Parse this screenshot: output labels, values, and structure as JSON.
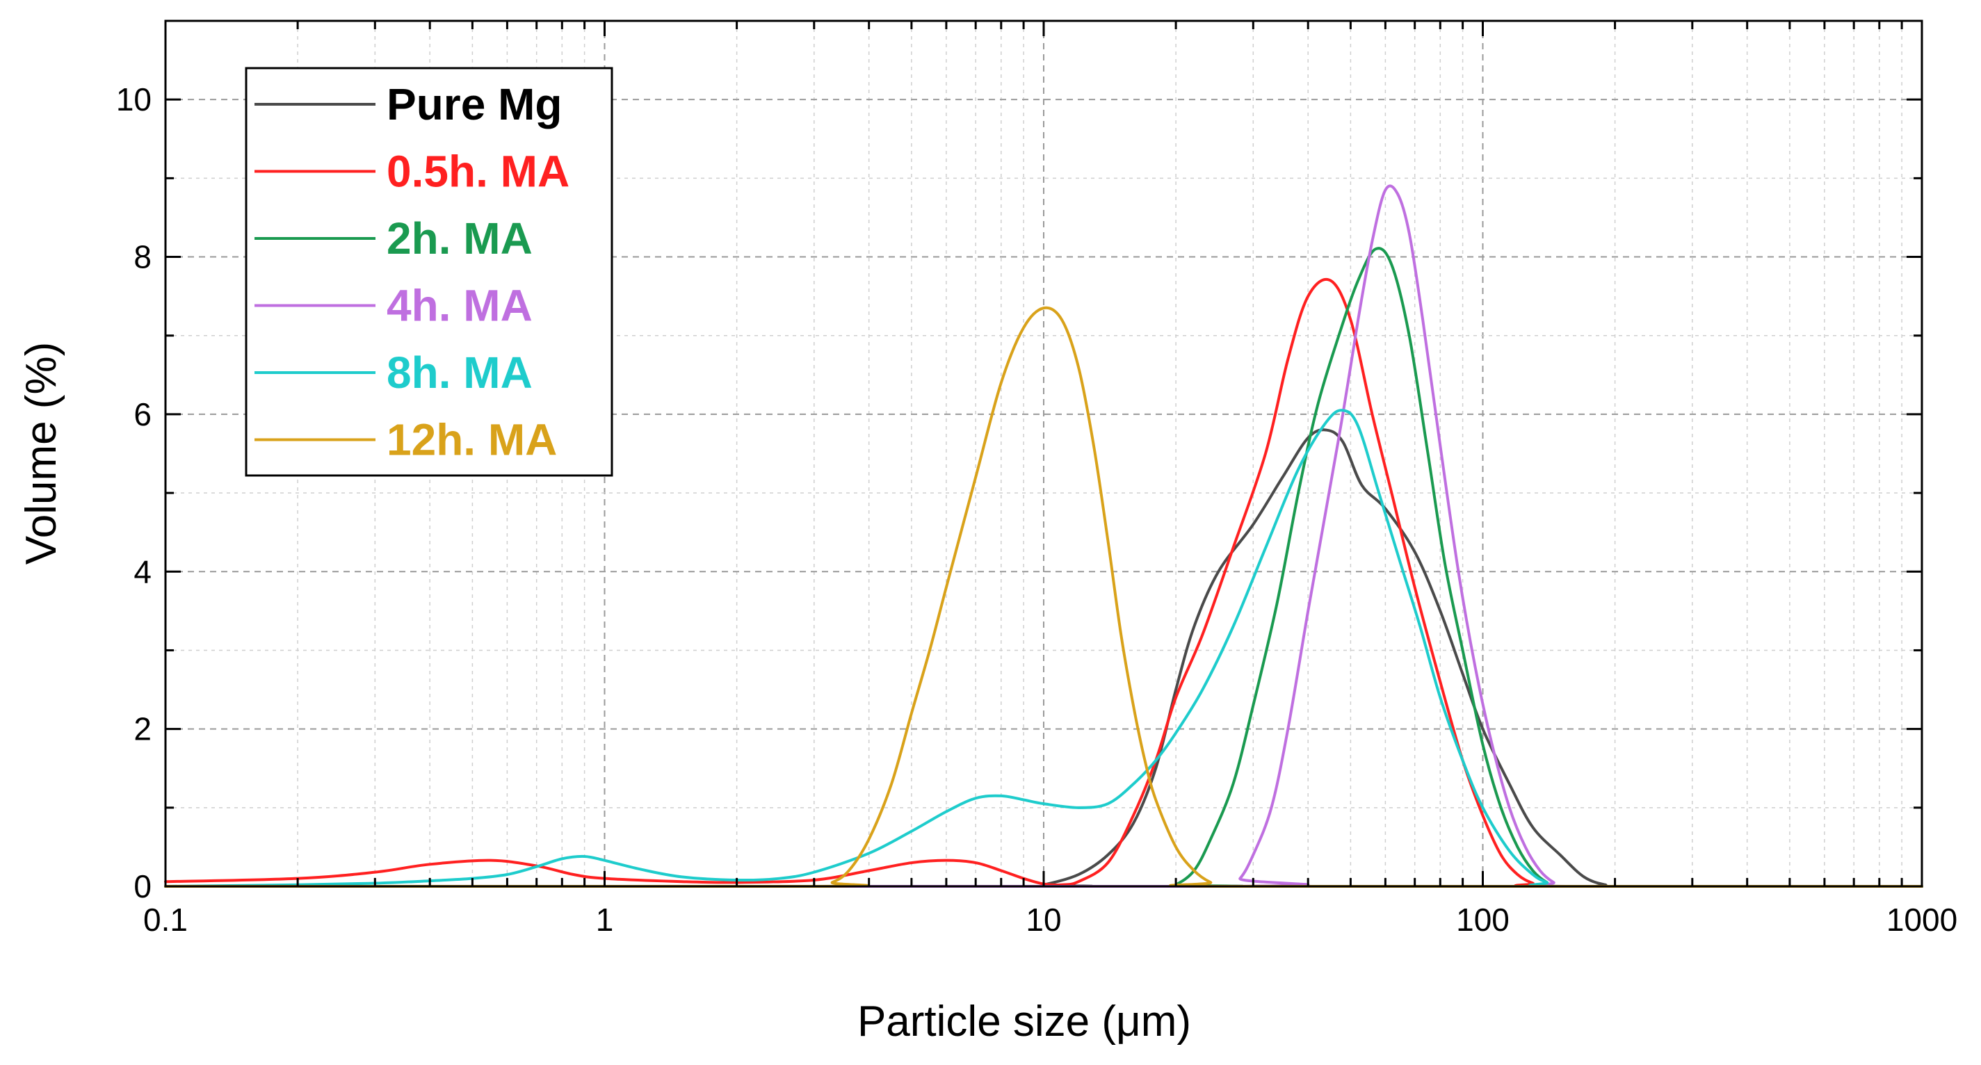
{
  "chart_data": {
    "type": "line",
    "title": "",
    "xlabel": "Particle size (μm)",
    "ylabel": "Volume (%)",
    "xscale": "log",
    "xlim": [
      0.1,
      1000
    ],
    "ylim": [
      0,
      11
    ],
    "x_ticks": [
      0.1,
      1,
      10,
      100,
      1000
    ],
    "x_tick_labels": [
      "0.1",
      "1",
      "10",
      "100",
      "1000"
    ],
    "y_ticks": [
      0,
      2,
      4,
      6,
      8,
      10
    ],
    "y_tick_labels": [
      "0",
      "2",
      "4",
      "6",
      "8",
      "10"
    ],
    "grid": true,
    "legend_position": "top-left",
    "series": [
      {
        "name": "Pure Mg",
        "color": "#4a4a4a",
        "points": [
          [
            0.1,
            0
          ],
          [
            9,
            0
          ],
          [
            10,
            0.02
          ],
          [
            12,
            0.15
          ],
          [
            14,
            0.4
          ],
          [
            16,
            0.8
          ],
          [
            18,
            1.5
          ],
          [
            20,
            2.5
          ],
          [
            22,
            3.3
          ],
          [
            25,
            4.0
          ],
          [
            30,
            4.6
          ],
          [
            35,
            5.2
          ],
          [
            40,
            5.7
          ],
          [
            44,
            5.8
          ],
          [
            48,
            5.65
          ],
          [
            53,
            5.1
          ],
          [
            60,
            4.8
          ],
          [
            70,
            4.25
          ],
          [
            80,
            3.5
          ],
          [
            90,
            2.7
          ],
          [
            100,
            2.0
          ],
          [
            115,
            1.3
          ],
          [
            130,
            0.75
          ],
          [
            150,
            0.4
          ],
          [
            170,
            0.12
          ],
          [
            190,
            0.02
          ],
          [
            210,
            0
          ],
          [
            1000,
            0
          ]
        ]
      },
      {
        "name": "0.5h. MA",
        "color": "#ff2020",
        "points": [
          [
            0.1,
            0.06
          ],
          [
            0.2,
            0.1
          ],
          [
            0.3,
            0.18
          ],
          [
            0.4,
            0.28
          ],
          [
            0.55,
            0.33
          ],
          [
            0.7,
            0.26
          ],
          [
            0.85,
            0.15
          ],
          [
            1,
            0.1
          ],
          [
            1.5,
            0.06
          ],
          [
            2,
            0.05
          ],
          [
            3,
            0.08
          ],
          [
            4,
            0.2
          ],
          [
            5,
            0.3
          ],
          [
            6,
            0.33
          ],
          [
            7,
            0.3
          ],
          [
            8,
            0.2
          ],
          [
            9,
            0.1
          ],
          [
            10,
            0.03
          ],
          [
            11,
            0.02
          ],
          [
            12,
            0.06
          ],
          [
            14,
            0.3
          ],
          [
            16,
            0.9
          ],
          [
            18,
            1.6
          ],
          [
            20,
            2.4
          ],
          [
            23,
            3.2
          ],
          [
            27,
            4.3
          ],
          [
            32,
            5.5
          ],
          [
            36,
            6.7
          ],
          [
            40,
            7.5
          ],
          [
            45,
            7.7
          ],
          [
            50,
            7.2
          ],
          [
            56,
            6.0
          ],
          [
            62,
            5.0
          ],
          [
            70,
            3.8
          ],
          [
            80,
            2.6
          ],
          [
            90,
            1.6
          ],
          [
            100,
            0.9
          ],
          [
            110,
            0.4
          ],
          [
            120,
            0.15
          ],
          [
            130,
            0.04
          ],
          [
            140,
            0
          ],
          [
            1000,
            0
          ]
        ]
      },
      {
        "name": "2h. MA",
        "color": "#1a9a50",
        "points": [
          [
            0.1,
            0
          ],
          [
            19,
            0
          ],
          [
            20,
            0.02
          ],
          [
            22,
            0.2
          ],
          [
            24,
            0.6
          ],
          [
            27,
            1.3
          ],
          [
            30,
            2.3
          ],
          [
            34,
            3.6
          ],
          [
            38,
            5.0
          ],
          [
            42,
            6.1
          ],
          [
            47,
            7.0
          ],
          [
            52,
            7.7
          ],
          [
            57,
            8.1
          ],
          [
            62,
            7.9
          ],
          [
            68,
            7.0
          ],
          [
            75,
            5.5
          ],
          [
            82,
            4.1
          ],
          [
            90,
            3.0
          ],
          [
            100,
            1.8
          ],
          [
            110,
            1.0
          ],
          [
            120,
            0.5
          ],
          [
            130,
            0.2
          ],
          [
            140,
            0.05
          ],
          [
            150,
            0
          ],
          [
            1000,
            0
          ]
        ]
      },
      {
        "name": "4h. MA",
        "color": "#bf6fe0",
        "points": [
          [
            0.1,
            0
          ],
          [
            26,
            0
          ],
          [
            28,
            0.1
          ],
          [
            30,
            0.4
          ],
          [
            33,
            1.0
          ],
          [
            36,
            2.0
          ],
          [
            40,
            3.5
          ],
          [
            44,
            4.8
          ],
          [
            48,
            6.0
          ],
          [
            52,
            7.2
          ],
          [
            56,
            8.2
          ],
          [
            60,
            8.85
          ],
          [
            64,
            8.8
          ],
          [
            68,
            8.3
          ],
          [
            73,
            7.2
          ],
          [
            80,
            5.6
          ],
          [
            88,
            4.0
          ],
          [
            96,
            2.8
          ],
          [
            105,
            1.8
          ],
          [
            115,
            1.0
          ],
          [
            125,
            0.5
          ],
          [
            135,
            0.2
          ],
          [
            145,
            0.05
          ],
          [
            155,
            0
          ],
          [
            1000,
            0
          ]
        ]
      },
      {
        "name": "8h. MA",
        "color": "#1ecccc",
        "points": [
          [
            0.1,
            0
          ],
          [
            0.2,
            0.02
          ],
          [
            0.3,
            0.04
          ],
          [
            0.4,
            0.07
          ],
          [
            0.5,
            0.1
          ],
          [
            0.6,
            0.15
          ],
          [
            0.7,
            0.25
          ],
          [
            0.8,
            0.35
          ],
          [
            0.9,
            0.38
          ],
          [
            1,
            0.33
          ],
          [
            1.2,
            0.22
          ],
          [
            1.5,
            0.12
          ],
          [
            2,
            0.08
          ],
          [
            2.5,
            0.1
          ],
          [
            3,
            0.18
          ],
          [
            4,
            0.42
          ],
          [
            5,
            0.7
          ],
          [
            6,
            0.95
          ],
          [
            7,
            1.12
          ],
          [
            8,
            1.15
          ],
          [
            9,
            1.1
          ],
          [
            10,
            1.05
          ],
          [
            12,
            1.0
          ],
          [
            14,
            1.05
          ],
          [
            16,
            1.3
          ],
          [
            18,
            1.6
          ],
          [
            20,
            1.95
          ],
          [
            23,
            2.5
          ],
          [
            27,
            3.3
          ],
          [
            32,
            4.3
          ],
          [
            38,
            5.3
          ],
          [
            44,
            5.9
          ],
          [
            48,
            6.05
          ],
          [
            52,
            5.85
          ],
          [
            58,
            5.0
          ],
          [
            65,
            4.1
          ],
          [
            72,
            3.3
          ],
          [
            80,
            2.4
          ],
          [
            90,
            1.6
          ],
          [
            100,
            1.0
          ],
          [
            115,
            0.45
          ],
          [
            130,
            0.15
          ],
          [
            140,
            0.05
          ],
          [
            150,
            0
          ],
          [
            1000,
            0
          ]
        ]
      },
      {
        "name": "12h. MA",
        "color": "#d9a21a",
        "points": [
          [
            0.1,
            0
          ],
          [
            3,
            0
          ],
          [
            3.3,
            0.05
          ],
          [
            3.6,
            0.2
          ],
          [
            4,
            0.6
          ],
          [
            4.5,
            1.3
          ],
          [
            5,
            2.2
          ],
          [
            5.5,
            3.0
          ],
          [
            6,
            3.8
          ],
          [
            7,
            5.2
          ],
          [
            8,
            6.4
          ],
          [
            9,
            7.1
          ],
          [
            10,
            7.35
          ],
          [
            11,
            7.2
          ],
          [
            12,
            6.6
          ],
          [
            13,
            5.6
          ],
          [
            14,
            4.4
          ],
          [
            15,
            3.2
          ],
          [
            16,
            2.3
          ],
          [
            17,
            1.6
          ],
          [
            18,
            1.1
          ],
          [
            20,
            0.5
          ],
          [
            22,
            0.2
          ],
          [
            24,
            0.05
          ],
          [
            26,
            0
          ],
          [
            1000,
            0
          ]
        ]
      }
    ]
  }
}
